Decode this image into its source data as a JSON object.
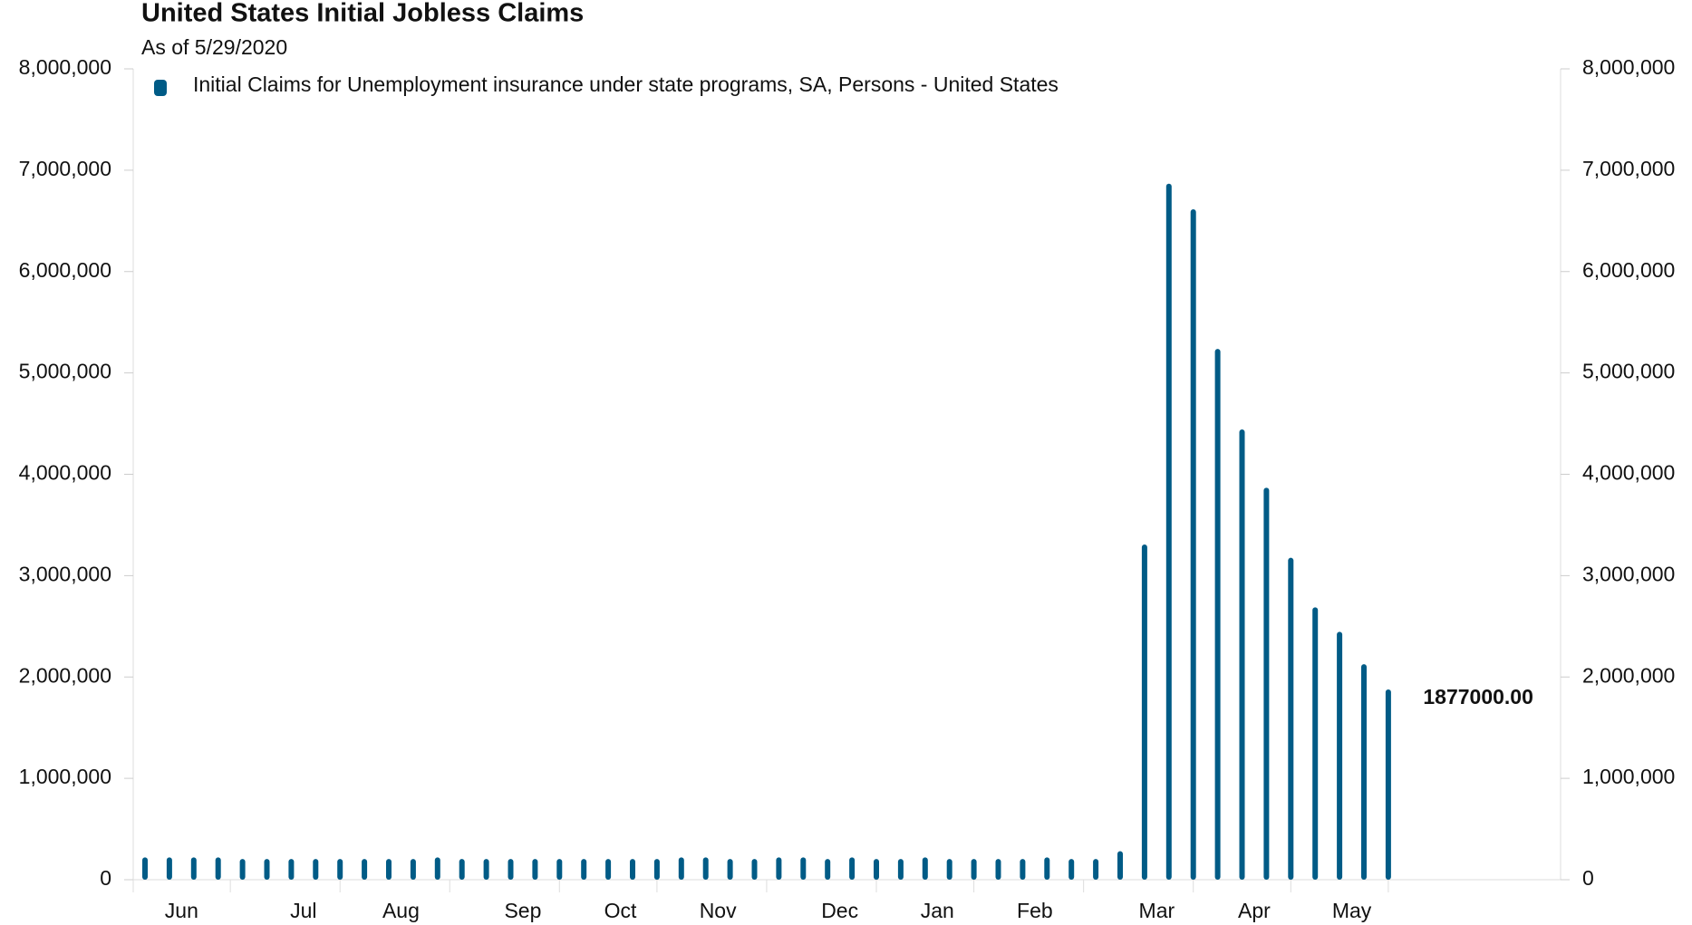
{
  "chart_data": {
    "type": "bar",
    "title": "United States Initial Jobless Claims",
    "subtitle": "As of 5/29/2020",
    "categories": [
      null,
      "Jun",
      null,
      null,
      null,
      null,
      "Jul",
      null,
      null,
      null,
      "Aug",
      null,
      null,
      null,
      null,
      "Sep",
      null,
      null,
      null,
      "Oct",
      null,
      null,
      null,
      "Nov",
      null,
      null,
      null,
      null,
      "Dec",
      null,
      null,
      null,
      "Jan",
      null,
      null,
      null,
      "Feb",
      null,
      null,
      null,
      null,
      "Mar",
      null,
      null,
      null,
      "Apr",
      null,
      null,
      null,
      "May",
      null,
      null
    ],
    "series": [
      {
        "name": "Initial Claims for Unemployment insurance under state programs, SA, Persons - United States",
        "color": "#005b86",
        "values": [
          220000,
          220000,
          220000,
          220000,
          205000,
          205000,
          205000,
          205000,
          205000,
          205000,
          205000,
          205000,
          220000,
          205000,
          205000,
          205000,
          205000,
          205000,
          205000,
          205000,
          205000,
          205000,
          220000,
          220000,
          205000,
          205000,
          220000,
          220000,
          205000,
          220000,
          205000,
          205000,
          220000,
          205000,
          205000,
          205000,
          205000,
          220000,
          205000,
          205000,
          282000,
          3307000,
          6867000,
          6615000,
          5237000,
          4442000,
          3867000,
          3176000,
          2687000,
          2446000,
          2126000,
          1877000
        ],
        "value_labels": [
          null,
          null,
          null,
          null,
          null,
          null,
          null,
          null,
          null,
          null,
          null,
          null,
          null,
          null,
          null,
          null,
          null,
          null,
          null,
          null,
          null,
          null,
          null,
          null,
          null,
          null,
          null,
          null,
          null,
          null,
          null,
          null,
          null,
          null,
          null,
          null,
          null,
          null,
          null,
          null,
          null,
          null,
          null,
          null,
          null,
          null,
          null,
          null,
          null,
          null,
          null,
          "1877000.00"
        ]
      }
    ],
    "ylim": [
      0,
      8000000
    ],
    "yticks": [
      0,
      {
        "value": 1000000,
        "label": "1,000,000"
      },
      {
        "value": 2000000,
        "label": "2,000,000"
      },
      {
        "value": 3000000,
        "label": "3,000,000"
      },
      {
        "value": 4000000,
        "label": "4,000,000"
      },
      {
        "value": 5000000,
        "label": "5,000,000"
      },
      {
        "value": 6000000,
        "label": "6,000,000"
      },
      {
        "value": 7000000,
        "label": "7,000,000"
      },
      {
        "value": 8000000,
        "label": "8,000,000"
      }
    ],
    "y2lim": [
      0,
      8000000
    ],
    "y2ticks": [
      0,
      {
        "value": 1000000,
        "label": "1,000,000"
      },
      {
        "value": 2000000,
        "label": "2,000,000"
      },
      {
        "value": 3000000,
        "label": "3,000,000"
      },
      {
        "value": 4000000,
        "label": "4,000,000"
      },
      {
        "value": 5000000,
        "label": "5,000,000"
      },
      {
        "value": 6000000,
        "label": "6,000,000"
      },
      {
        "value": 7000000,
        "label": "7,000,000"
      },
      {
        "value": 8000000,
        "label": "8,000,000"
      }
    ],
    "grid": false
  }
}
